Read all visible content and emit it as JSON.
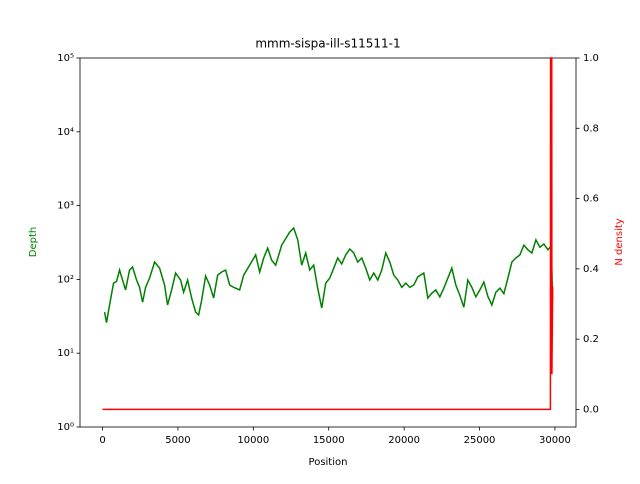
{
  "chart_data": {
    "type": "line",
    "title": "mmm-sispa-ill-s11511-1",
    "xlabel": "Position",
    "ylabel": "Depth",
    "y2label": "N density",
    "ylabel_color": "green",
    "y2label_color": "red",
    "xlim": [
      -1495,
      31398
    ],
    "xticks": [
      0,
      5000,
      10000,
      15000,
      20000,
      25000,
      30000
    ],
    "ylim": [
      1,
      100000
    ],
    "yscale": "log",
    "yticks": [
      {
        "value": 1,
        "label": "10⁰"
      },
      {
        "value": 10,
        "label": "10¹"
      },
      {
        "value": 100,
        "label": "10²"
      },
      {
        "value": 1000,
        "label": "10³"
      },
      {
        "value": 10000,
        "label": "10⁴"
      },
      {
        "value": 100000,
        "label": "10⁵"
      }
    ],
    "y2lim": [
      -0.05,
      1.0
    ],
    "y2ticks": [
      {
        "value": 0,
        "label": "0.0"
      },
      {
        "value": 0.2,
        "label": "0.2"
      },
      {
        "value": 0.4,
        "label": "0.4"
      },
      {
        "value": 0.6,
        "label": "0.6"
      },
      {
        "value": 0.8,
        "label": "0.8"
      },
      {
        "value": 1,
        "label": "1.0"
      }
    ],
    "series": [
      {
        "color": "green",
        "axis": "y",
        "x": [
          133,
          265,
          465,
          730,
          929,
          1128,
          1327,
          1527,
          1792,
          1991,
          2257,
          2456,
          2655,
          2854,
          3119,
          3451,
          3783,
          4115,
          4314,
          4580,
          4845,
          5177,
          5376,
          5641,
          5907,
          6172,
          6372,
          6571,
          6836,
          7102,
          7367,
          7633,
          7898,
          8164,
          8429,
          8694,
          9093,
          9358,
          9756,
          10154,
          10420,
          10686,
          10951,
          11217,
          11482,
          11880,
          12411,
          12677,
          12942,
          13208,
          13473,
          13739,
          14004,
          14270,
          14535,
          14801,
          15066,
          15332,
          15597,
          15862,
          16128,
          16393,
          16659,
          16924,
          17190,
          17455,
          17721,
          17986,
          18252,
          18517,
          18783,
          19048,
          19314,
          19579,
          19845,
          20110,
          20376,
          20641,
          20907,
          21305,
          21570,
          21836,
          22101,
          22367,
          22632,
          22898,
          23163,
          23429,
          23694,
          23960,
          24225,
          24491,
          24756,
          25022,
          25287,
          25552,
          25818,
          26083,
          26349,
          26614,
          26880,
          27145,
          27411,
          27676,
          27942,
          28207,
          28473,
          28738,
          29004,
          29269,
          29535,
          29750,
          29850
        ],
        "values": [
          36,
          26,
          45,
          89,
          94,
          134,
          98,
          72,
          134,
          147,
          98,
          78,
          49,
          78,
          104,
          172,
          142,
          84,
          45,
          72,
          122,
          98,
          67,
          98,
          56,
          36,
          33,
          52,
          111,
          84,
          56,
          114,
          126,
          134,
          84,
          78,
          72,
          114,
          156,
          215,
          126,
          195,
          265,
          182,
          156,
          291,
          437,
          497,
          344,
          156,
          228,
          134,
          156,
          76,
          41,
          89,
          104,
          142,
          195,
          162,
          215,
          258,
          228,
          172,
          195,
          142,
          98,
          122,
          98,
          134,
          228,
          172,
          114,
          98,
          78,
          89,
          78,
          84,
          108,
          122,
          56,
          65,
          72,
          58,
          76,
          104,
          142,
          84,
          61,
          42,
          98,
          78,
          58,
          72,
          92,
          59,
          45,
          67,
          76,
          64,
          104,
          172,
          195,
          215,
          291,
          252,
          228,
          344,
          273,
          301,
          252,
          284,
          52
        ]
      },
      {
        "color": "red",
        "axis": "y2",
        "x": [
          0,
          29700,
          29710,
          29790,
          29800,
          29850
        ],
        "values": [
          0,
          0,
          1,
          1,
          0.1,
          0.35
        ]
      }
    ]
  }
}
